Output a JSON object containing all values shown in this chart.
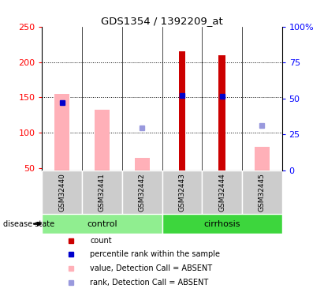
{
  "title": "GDS1354 / 1392209_at",
  "samples": [
    "GSM32440",
    "GSM32441",
    "GSM32442",
    "GSM32443",
    "GSM32444",
    "GSM32445"
  ],
  "ylim_left": [
    47,
    250
  ],
  "ylim_right": [
    0,
    100
  ],
  "yticks_left": [
    50,
    100,
    150,
    200,
    250
  ],
  "yticks_right": [
    0,
    25,
    50,
    75,
    100
  ],
  "pink_bar_heights": [
    155,
    133,
    65,
    0,
    0,
    80
  ],
  "red_bar_heights": [
    0,
    0,
    0,
    215,
    210,
    0
  ],
  "blue_square_values": [
    143,
    null,
    null,
    153,
    152,
    null
  ],
  "light_blue_square_values": [
    null,
    null,
    107,
    null,
    null,
    110
  ],
  "bar_bottom": 47,
  "pink_color": "#FFB0B8",
  "red_color": "#CC0000",
  "blue_color": "#0000CC",
  "light_blue_color": "#9999DD",
  "control_color": "#90EE90",
  "cirrhosis_color": "#3DD63D",
  "label_bg_color": "#CCCCCC",
  "group_spans": [
    {
      "name": "control",
      "start": 0,
      "end": 2
    },
    {
      "name": "cirrhosis",
      "start": 3,
      "end": 5
    }
  ],
  "legend_items": [
    {
      "label": "count",
      "color": "#CC0000"
    },
    {
      "label": "percentile rank within the sample",
      "color": "#0000CC"
    },
    {
      "label": "value, Detection Call = ABSENT",
      "color": "#FFB0B8"
    },
    {
      "label": "rank, Detection Call = ABSENT",
      "color": "#9999DD"
    }
  ]
}
